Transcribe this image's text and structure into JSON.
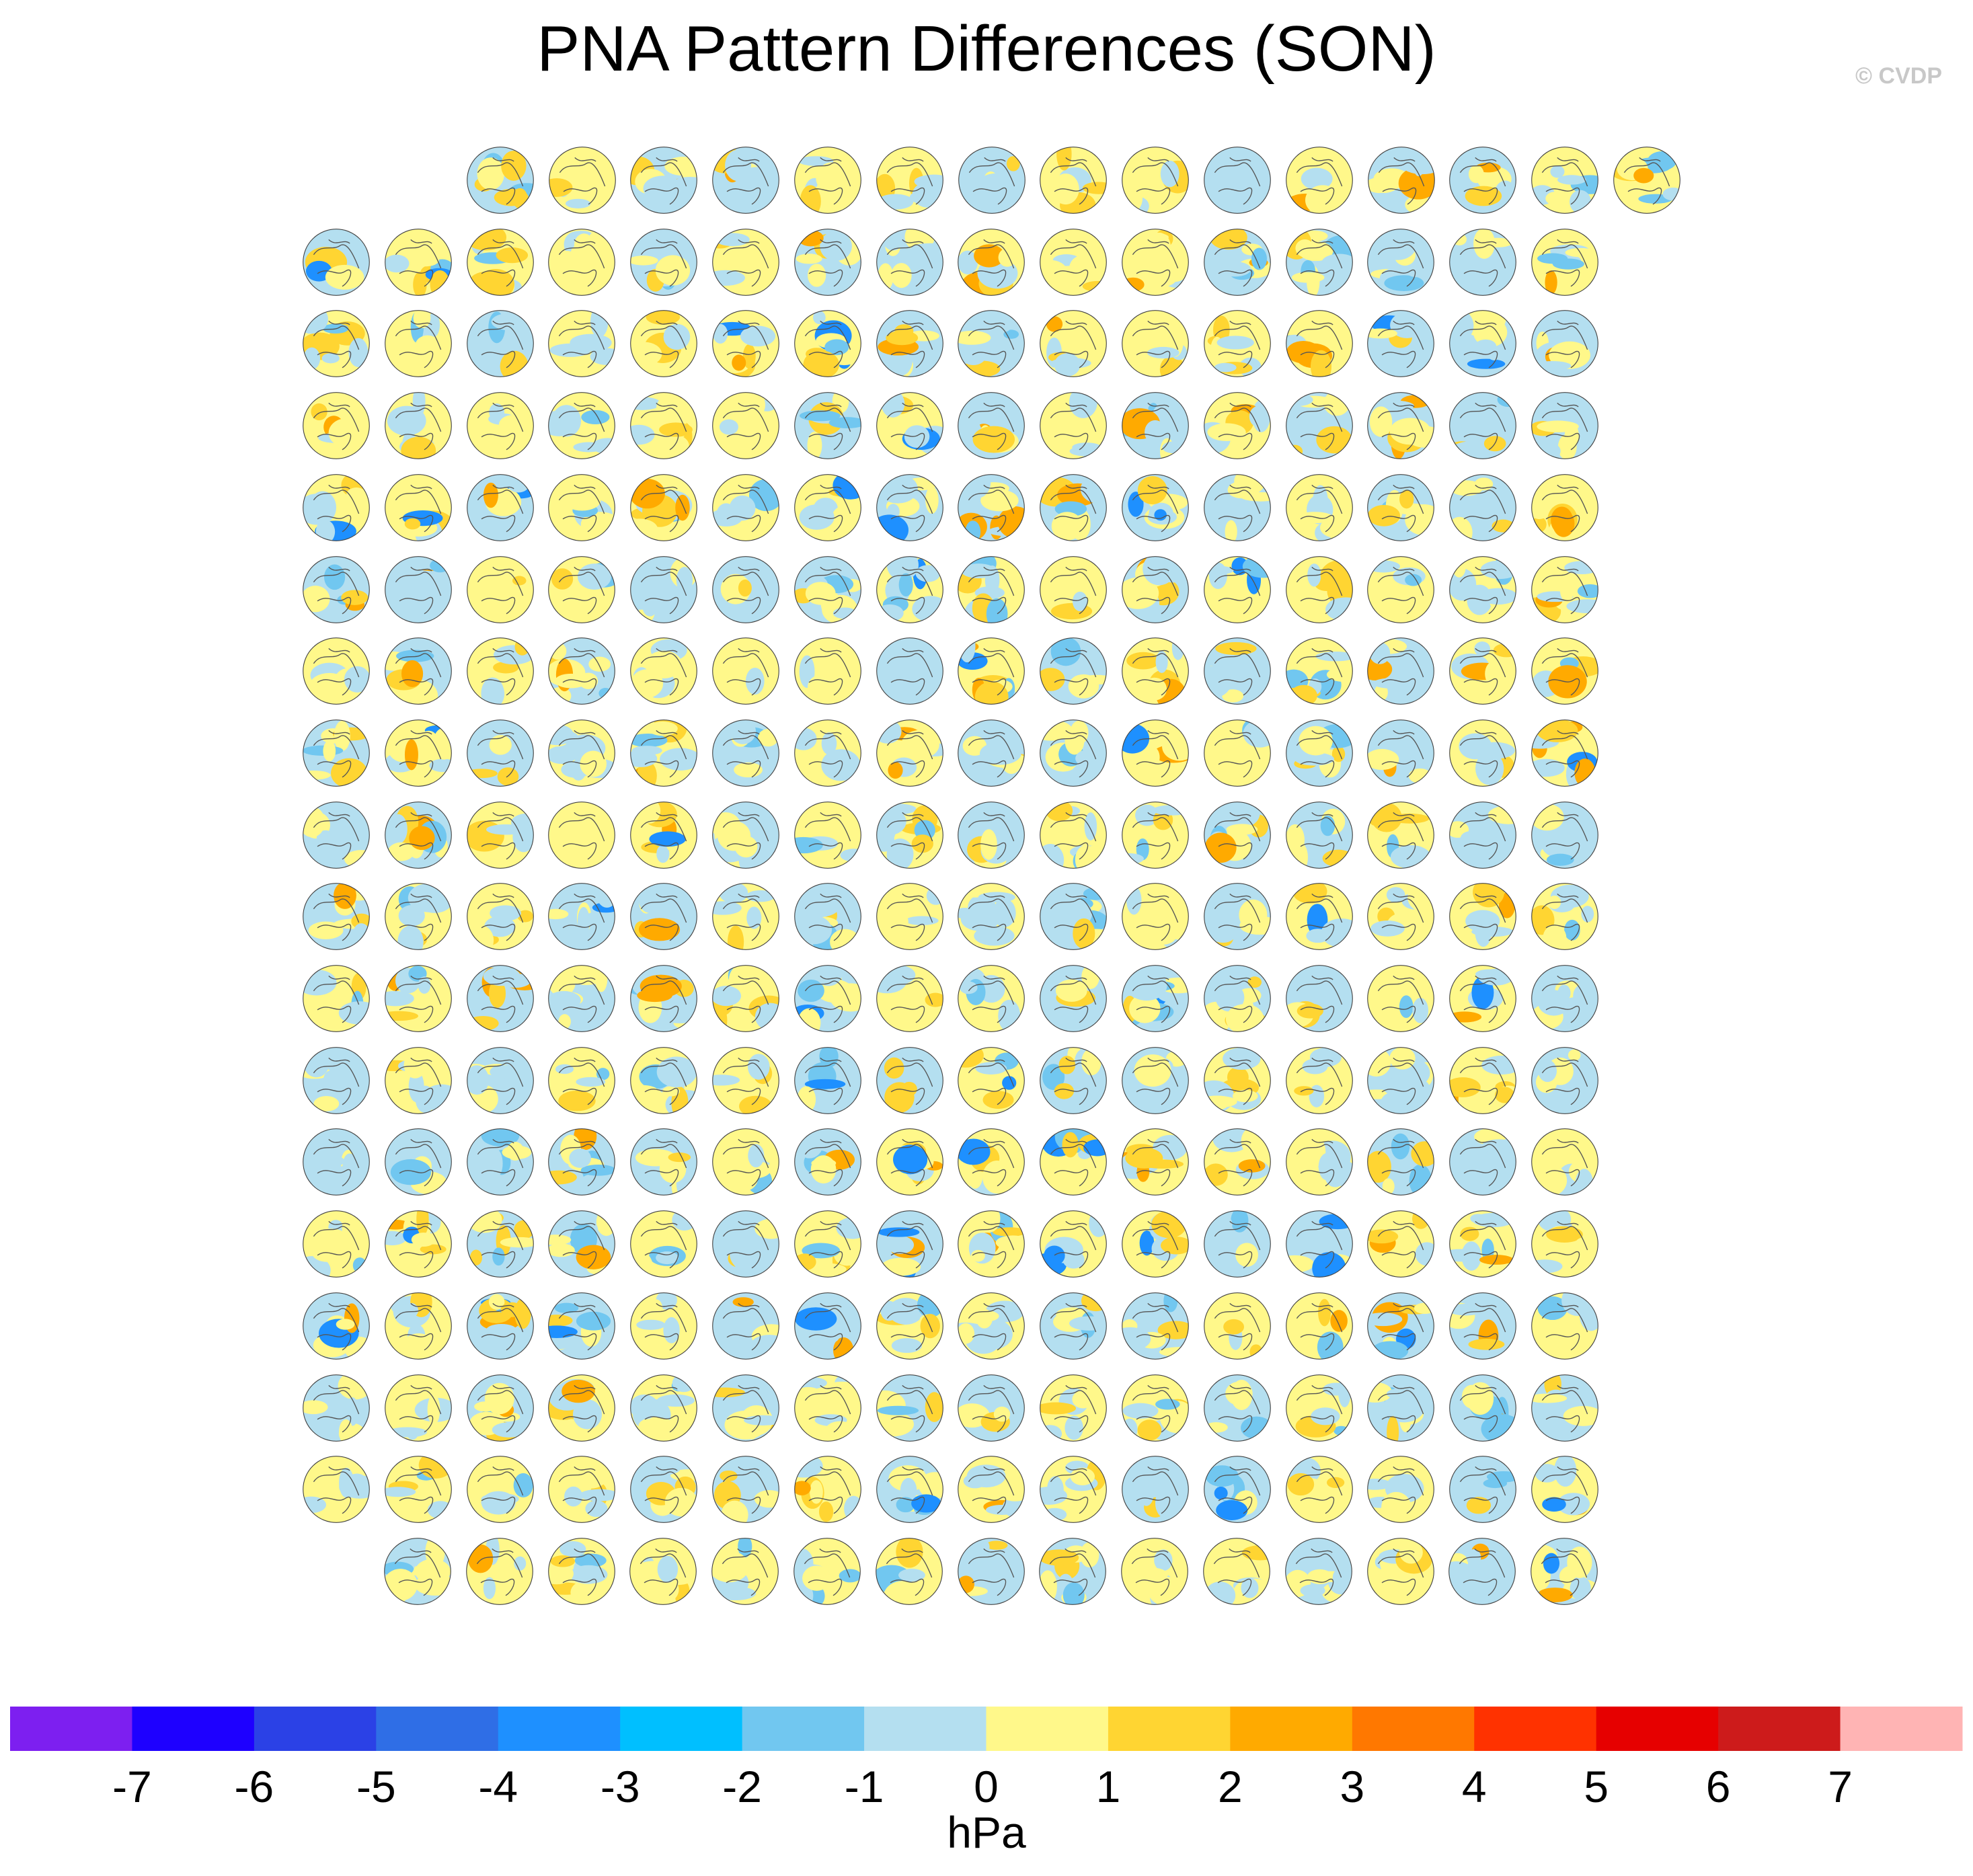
{
  "chart_data": {
    "type": "heatmap",
    "title": "PNA Pattern Differences (SON)",
    "watermark": "© CVDP",
    "panel_grid": {
      "row_counts": [
        15,
        16,
        16,
        16,
        16,
        16,
        16,
        16,
        16,
        16,
        16,
        16,
        16,
        16,
        16,
        16,
        16,
        15
      ],
      "projection": "polar stereographic, Northern Hemisphere",
      "fill": "sea level pressure difference pattern"
    },
    "colorbar": {
      "units": "hPa",
      "tick_labels": [
        "-7",
        "-6",
        "-5",
        "-4",
        "-3",
        "-2",
        "-1",
        "0",
        "1",
        "2",
        "3",
        "4",
        "5",
        "6",
        "7"
      ],
      "colors": [
        "#7d1ff0",
        "#1e00ff",
        "#2b41e6",
        "#2f6ee6",
        "#1e90ff",
        "#00bfff",
        "#71c7f0",
        "#b4dff0",
        "#fff88a",
        "#ffd532",
        "#ffaa00",
        "#ff7800",
        "#ff3200",
        "#e60000",
        "#cd1b1b",
        "#ffb4b4"
      ]
    }
  }
}
